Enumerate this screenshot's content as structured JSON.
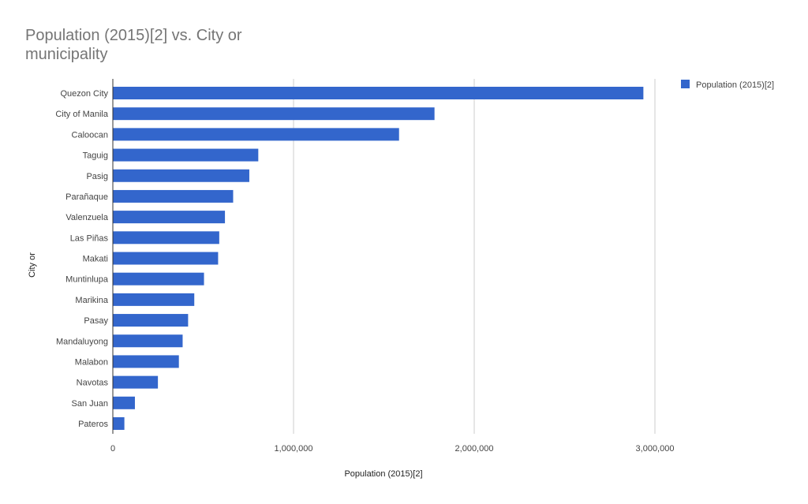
{
  "chart_data": {
    "type": "bar",
    "orientation": "horizontal",
    "title": "Population (2015)[2] vs. City or municipality",
    "xlabel": "Population (2015)[2]",
    "ylabel": "City or",
    "xlim": [
      0,
      3000000
    ],
    "xticks": [
      "0",
      "1,000,000",
      "2,000,000",
      "3,000,000"
    ],
    "grid": true,
    "legend_position": "right",
    "color": "#3366cc",
    "categories": [
      "Quezon City",
      "City of Manila",
      "Caloocan",
      "Taguig",
      "Pasig",
      "Parañaque",
      "Valenzuela",
      "Las Piñas",
      "Makati",
      "Muntinlupa",
      "Marikina",
      "Pasay",
      "Mandaluyong",
      "Malabon",
      "Navotas",
      "San Juan",
      "Pateros"
    ],
    "series": [
      {
        "name": "Population (2015)[2]",
        "values": [
          2936116,
          1780148,
          1583978,
          804915,
          755300,
          665822,
          620422,
          588894,
          582602,
          504509,
          450741,
          416522,
          386276,
          365525,
          249463,
          122180,
          63840
        ]
      }
    ]
  }
}
